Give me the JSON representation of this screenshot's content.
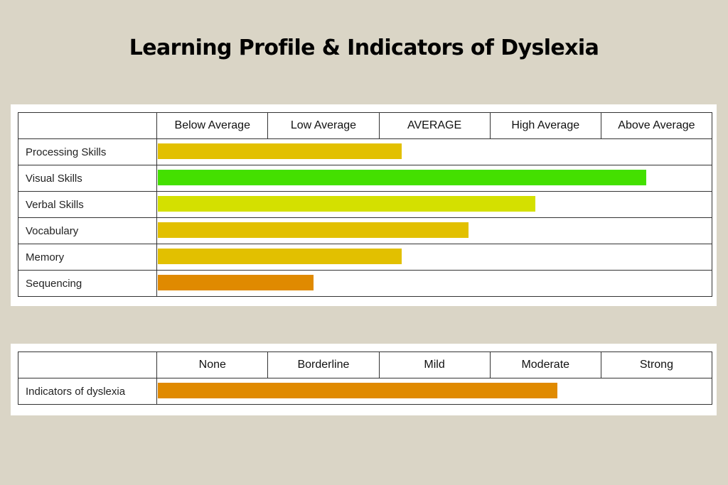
{
  "title": "Learning Profile & Indicators of Dyslexia",
  "chart_data": [
    {
      "type": "bar",
      "orientation": "horizontal",
      "title": "Learning Profile",
      "scale_labels": [
        "Below Average",
        "Low Average",
        "AVERAGE",
        "High Average",
        "Above Average"
      ],
      "categories": [
        "Processing Skills",
        "Visual Skills",
        "Verbal Skills",
        "Vocabulary",
        "Memory",
        "Sequencing"
      ],
      "values": [
        2.2,
        4.4,
        3.4,
        2.8,
        2.2,
        1.4
      ],
      "xlim": [
        0,
        5
      ],
      "colors": [
        "#e2c000",
        "#44e000",
        "#d4e000",
        "#e2c000",
        "#e2c000",
        "#e08a00"
      ],
      "grid": true
    },
    {
      "type": "bar",
      "orientation": "horizontal",
      "title": "Indicators of dyslexia",
      "scale_labels": [
        "None",
        "Borderline",
        "Mild",
        "Moderate",
        "Strong"
      ],
      "categories": [
        "Indicators of dyslexia"
      ],
      "values": [
        3.6
      ],
      "xlim": [
        0,
        5
      ],
      "colors": [
        "#e08a00"
      ],
      "grid": true
    }
  ]
}
